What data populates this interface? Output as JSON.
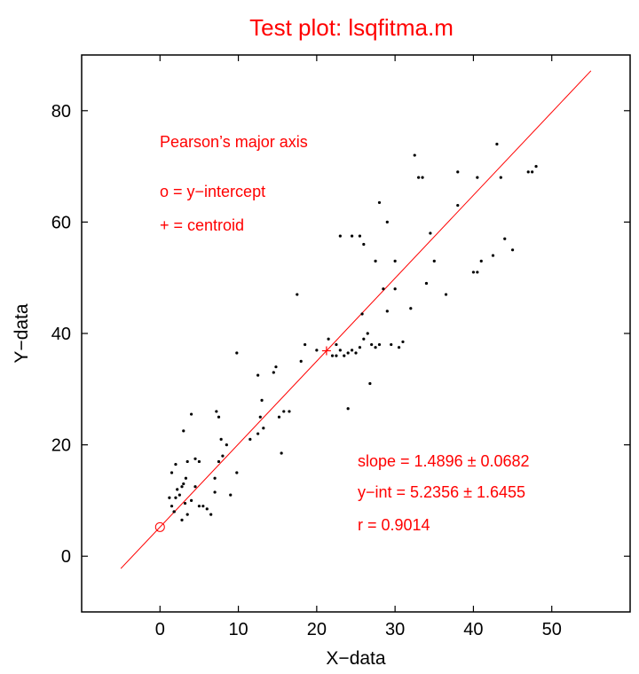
{
  "chart_data": {
    "type": "scatter",
    "title": "Test plot: lsqfitma.m",
    "xlabel": "X−data",
    "ylabel": "Y−data",
    "xlim": [
      -10,
      60
    ],
    "ylim": [
      -10,
      90
    ],
    "xticks": [
      0,
      10,
      20,
      30,
      40,
      50
    ],
    "yticks": [
      0,
      20,
      40,
      60,
      80
    ],
    "grid": false,
    "colors": {
      "points": "#000000",
      "fit": "#ff0000",
      "text": "#ff0000",
      "axes": "#000000"
    },
    "points": {
      "x": [
        1.8,
        2.2,
        2.8,
        3.2,
        3.5,
        4.0,
        4.5,
        5.0,
        5.5,
        6.0,
        6.5,
        7.0,
        7.5,
        8.0,
        1.5,
        2.0,
        2.5,
        3.0,
        3.5,
        4.5,
        1.2,
        1.5,
        2.0,
        2.8,
        3.3,
        5.0,
        7.0,
        7.5,
        7.8,
        8.5,
        9.0,
        9.8,
        11.5,
        12.5,
        12.8,
        13.0,
        13.2,
        14.5,
        14.8,
        15.5,
        15.8,
        16.5,
        18.0,
        18.5,
        20.0,
        21.5,
        22.0,
        22.5,
        23.0,
        23.5,
        24.0,
        24.5,
        25.0,
        25.5,
        26.0,
        26.5,
        26.8,
        27.0,
        27.5,
        28.0,
        28.5,
        29.0,
        29.5,
        30.0,
        30.5,
        31.0,
        32.0,
        33.0,
        34.0,
        35.0,
        36.5,
        38.0,
        40.0,
        40.5,
        41.0,
        42.5,
        44.0,
        45.0,
        47.0,
        47.5,
        48.0,
        23.0,
        24.5,
        25.5,
        26.0,
        27.5,
        28.0,
        29.0,
        30.0,
        32.5,
        33.5,
        34.5,
        38.0,
        40.5,
        43.0,
        43.5,
        22.5,
        24.0,
        25.8,
        12.5,
        15.2,
        17.5,
        9.8,
        4.0,
        3.0,
        7.2,
        1.8
      ],
      "y": [
        8.0,
        12.0,
        6.5,
        9.5,
        7.5,
        10.0,
        12.5,
        9.0,
        9.0,
        8.5,
        7.5,
        11.5,
        17.0,
        18.0,
        15.0,
        16.5,
        11.0,
        13.0,
        17.0,
        17.5,
        10.5,
        9.0,
        10.5,
        12.5,
        14.0,
        17.0,
        14.0,
        25.0,
        21.0,
        20.0,
        11.0,
        15.0,
        21.0,
        22.0,
        25.0,
        28.0,
        23.0,
        33.0,
        34.0,
        18.5,
        26.0,
        26.0,
        35.0,
        38.0,
        37.0,
        39.0,
        36.0,
        38.0,
        37.0,
        36.0,
        36.5,
        37.0,
        36.5,
        37.5,
        39.0,
        40.0,
        31.0,
        38.0,
        37.5,
        38.0,
        48.0,
        44.0,
        38.0,
        48.0,
        37.5,
        38.5,
        44.5,
        68.0,
        49.0,
        53.0,
        47.0,
        63.0,
        51.0,
        51.0,
        53.0,
        54.0,
        57.0,
        55.0,
        69.0,
        69.0,
        70.0,
        57.5,
        57.5,
        57.5,
        56.0,
        53.0,
        63.5,
        60.0,
        53.0,
        72.0,
        68.0,
        58.0,
        69.0,
        68.0,
        74.0,
        68.0,
        36.0,
        26.5,
        43.5,
        32.5,
        25.0,
        47.0,
        36.5,
        25.5,
        22.5,
        26.0,
        8.0
      ]
    },
    "fit_line": {
      "slope": 1.4896,
      "intercept": 5.2356,
      "x_range": [
        -5,
        55
      ]
    },
    "centroid": {
      "x": 21.25,
      "y": 36.89
    },
    "y_intercept_marker": {
      "x": 0,
      "y": 5.2356
    },
    "annotations": {
      "method": "Pearson’s major axis",
      "intercept_legend": "o  =  y−intercept",
      "centroid_legend": "+  =  centroid",
      "slope_text": "slope  =  1.4896  ±  0.0682",
      "yint_text": "y−int  =   5.2356  ±  1.6455",
      "r_text": "r  =  0.9014"
    }
  }
}
